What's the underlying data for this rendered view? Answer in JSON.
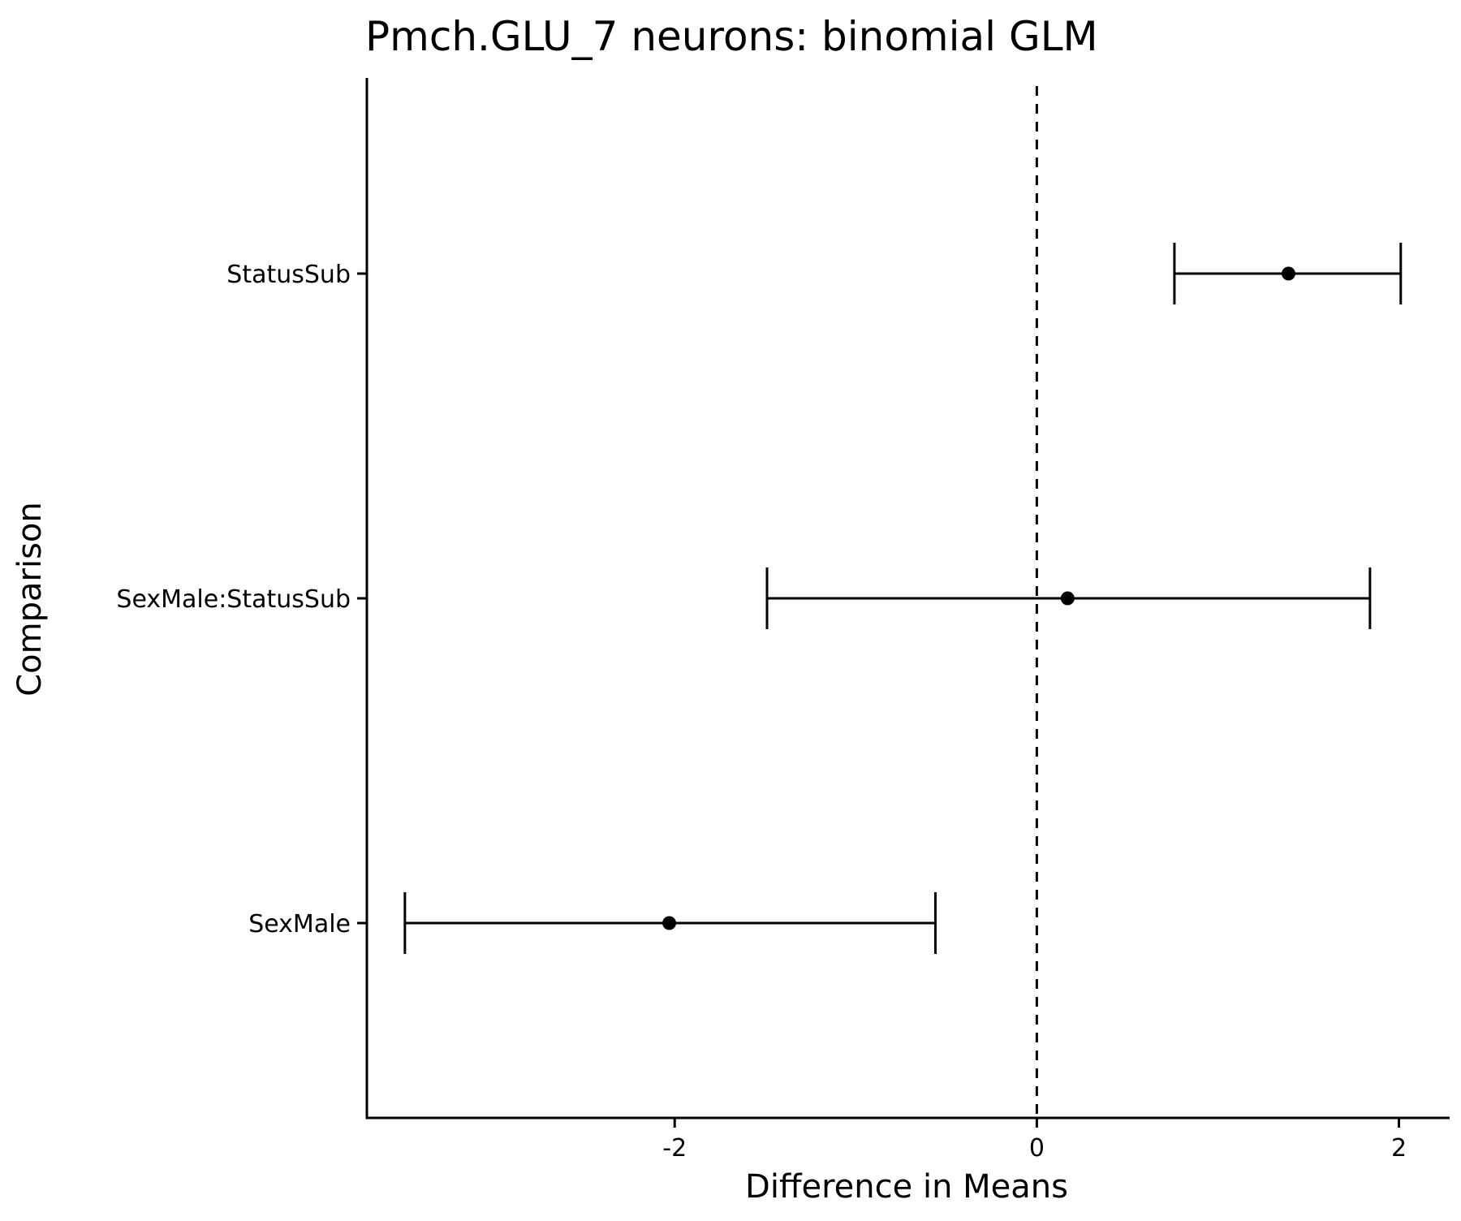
{
  "chart_data": {
    "type": "errorbar",
    "title": "Pmch.GLU_7 neurons: binomial GLM",
    "xlabel": "Difference in Means",
    "ylabel": "Comparison",
    "xlim": [
      -3.7,
      2.28
    ],
    "x_ticks": [
      {
        "value": -2,
        "label": "-2"
      },
      {
        "value": 0,
        "label": "0"
      },
      {
        "value": 2,
        "label": "2"
      }
    ],
    "reference_line": {
      "x": 0,
      "style": "dashed"
    },
    "categories": [
      "StatusSub",
      "SexMale:StatusSub",
      "SexMale"
    ],
    "points": [
      {
        "label": "StatusSub",
        "estimate": 1.39,
        "lower": 0.76,
        "upper": 2.01
      },
      {
        "label": "SexMale:StatusSub",
        "estimate": 0.17,
        "lower": -1.49,
        "upper": 1.84
      },
      {
        "label": "SexMale",
        "estimate": -2.03,
        "lower": -3.49,
        "upper": -0.56
      }
    ],
    "grid": false,
    "legend": "none",
    "colors": {
      "marks": "#000000",
      "background": "#ffffff"
    }
  }
}
